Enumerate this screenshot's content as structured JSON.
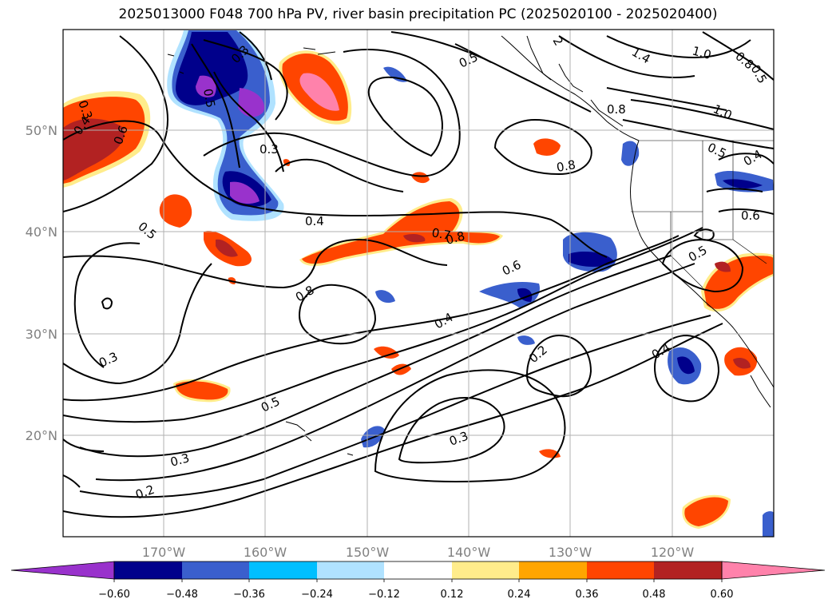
{
  "title": "2025013000 F048 700 hPa PV, river basin precipitation PC (2025020100 - 2025020400)",
  "lat_labels": [
    "50°N",
    "40°N",
    "30°N",
    "20°N"
  ],
  "lon_labels": [
    "170°W",
    "160°W",
    "150°W",
    "140°W",
    "130°W",
    "120°W"
  ],
  "colorbar": {
    "colors": [
      "#9932cc",
      "#00008b",
      "#3a5fcd",
      "#00bfff",
      "#b0e2ff",
      "#ffffff",
      "#ffec8b",
      "#ffa500",
      "#ff4500",
      "#b22222",
      "#ff82ab"
    ],
    "tick_labels": [
      "−0.60",
      "−0.48",
      "−0.36",
      "−0.24",
      "−0.12",
      "0.12",
      "0.24",
      "0.36",
      "0.48",
      "0.60"
    ],
    "extend": "both"
  },
  "contour_labels": [
    "0.3",
    "0.4",
    "0.6",
    "0.5",
    "0.3",
    "0.5",
    "0.4",
    "0.7",
    "0.8",
    "0.8",
    "0.6",
    "0.4",
    "0.3",
    "0.5",
    "0.3",
    "0.2",
    "0.2",
    "0.3",
    "0.4",
    "0.5",
    "0.8",
    "0.8",
    "1.4",
    "1.0",
    "0.8",
    "1.0",
    "0.5",
    "0.4",
    "0.6",
    "0.5",
    "2",
    "0.3",
    "0.5"
  ]
}
